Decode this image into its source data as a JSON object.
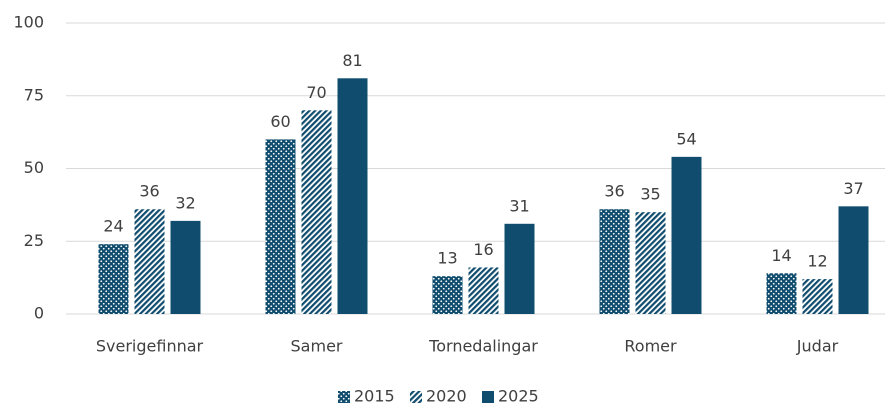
{
  "chart_data": {
    "type": "bar",
    "categories": [
      "Sverigefinnar",
      "Samer",
      "Tornedalingar",
      "Romer",
      "Judar"
    ],
    "series": [
      {
        "name": "2015",
        "color": "#0f4c6e",
        "pattern": "dots",
        "values": [
          24,
          60,
          13,
          36,
          14
        ]
      },
      {
        "name": "2020",
        "color": "#0f4c6e",
        "pattern": "hatch",
        "values": [
          36,
          70,
          16,
          35,
          12
        ]
      },
      {
        "name": "2025",
        "color": "#0f4c6e",
        "pattern": "solid",
        "values": [
          32,
          81,
          31,
          54,
          37
        ]
      }
    ],
    "ylim": [
      0,
      100
    ],
    "yticks": [
      0,
      25,
      50,
      75,
      100
    ],
    "grid": true,
    "legend": "bottom"
  }
}
